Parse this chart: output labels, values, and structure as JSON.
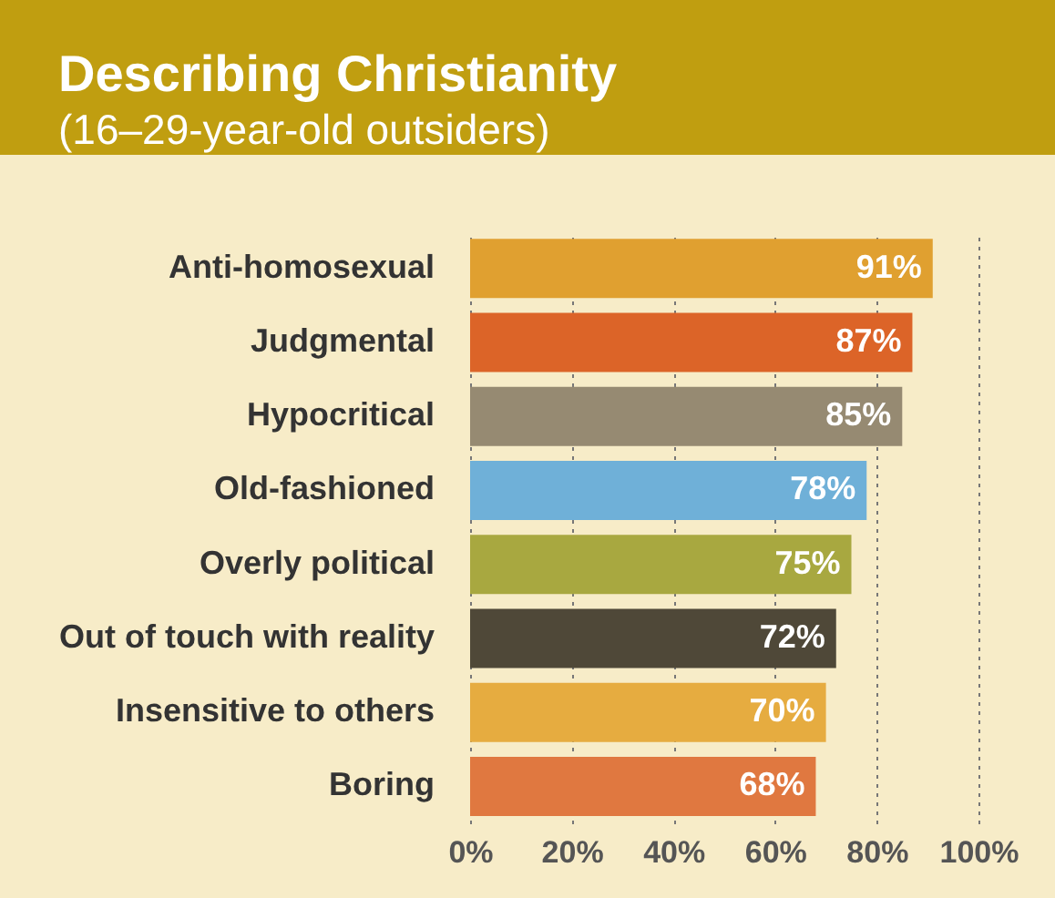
{
  "chart_data": {
    "type": "bar",
    "orientation": "horizontal",
    "title": "Describing Christianity",
    "subtitle": "(16–29-year-old outsiders)",
    "categories": [
      "Anti-homosexual",
      "Judgmental",
      "Hypocritical",
      "Old-fashioned",
      "Overly political",
      "Out of touch with reality",
      "Insensitive to others",
      "Boring"
    ],
    "values": [
      91,
      87,
      85,
      78,
      75,
      72,
      70,
      68
    ],
    "value_labels": [
      "91%",
      "87%",
      "85%",
      "78%",
      "75%",
      "72%",
      "70%",
      "68%"
    ],
    "colors": [
      "#e0a030",
      "#dc6428",
      "#968a72",
      "#6fb0d8",
      "#a8a840",
      "#4f4838",
      "#e6ac40",
      "#e07840"
    ],
    "xlim": [
      0,
      100
    ],
    "xticks": [
      {
        "value": 0,
        "label": "0%"
      },
      {
        "value": 20,
        "label": "20%"
      },
      {
        "value": 40,
        "label": "40%"
      },
      {
        "value": 60,
        "label": "60%"
      },
      {
        "value": 80,
        "label": "80%"
      },
      {
        "value": 100,
        "label": "100%"
      }
    ],
    "grid": "x",
    "legend": false
  }
}
